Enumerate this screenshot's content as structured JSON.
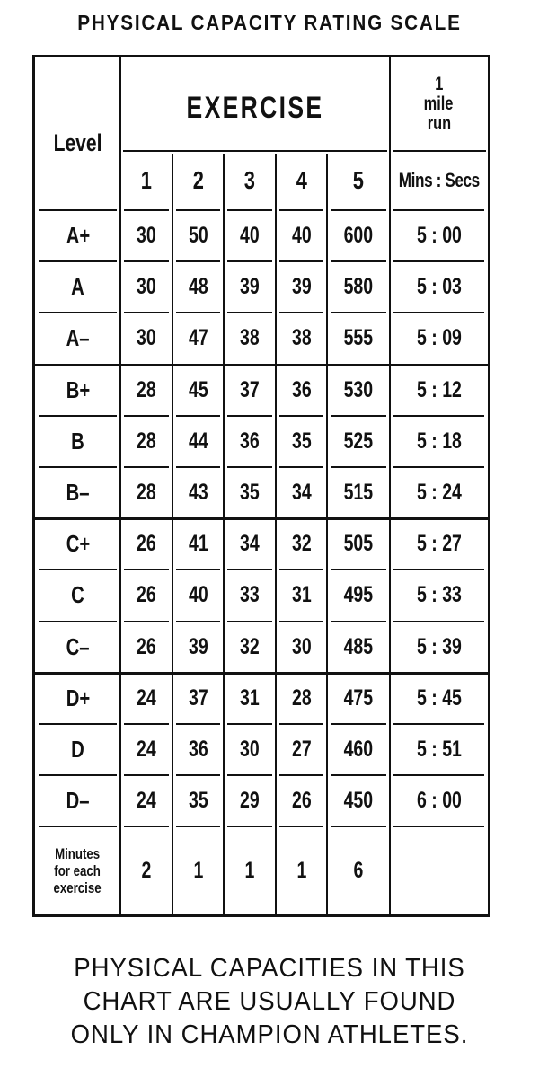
{
  "title": "PHYSICAL CAPACITY RATING SCALE",
  "table": {
    "level_header": "Level",
    "exercise_header": "EXERCISE",
    "run_header": [
      "1",
      "mile",
      "run"
    ],
    "exercise_numbers": [
      "1",
      "2",
      "3",
      "4",
      "5"
    ],
    "run_units": "Mins : Secs",
    "rows": [
      {
        "level": "A+",
        "values": [
          "30",
          "50",
          "40",
          "40",
          "600"
        ],
        "run": "5 : 00"
      },
      {
        "level": "A",
        "values": [
          "30",
          "48",
          "39",
          "39",
          "580"
        ],
        "run": "5 : 03"
      },
      {
        "level": "A–",
        "values": [
          "30",
          "47",
          "38",
          "38",
          "555"
        ],
        "run": "5 : 09"
      },
      {
        "level": "B+",
        "values": [
          "28",
          "45",
          "37",
          "36",
          "530"
        ],
        "run": "5 : 12"
      },
      {
        "level": "B",
        "values": [
          "28",
          "44",
          "36",
          "35",
          "525"
        ],
        "run": "5 : 18"
      },
      {
        "level": "B–",
        "values": [
          "28",
          "43",
          "35",
          "34",
          "515"
        ],
        "run": "5 : 24"
      },
      {
        "level": "C+",
        "values": [
          "26",
          "41",
          "34",
          "32",
          "505"
        ],
        "run": "5 : 27"
      },
      {
        "level": "C",
        "values": [
          "26",
          "40",
          "33",
          "31",
          "495"
        ],
        "run": "5 : 33"
      },
      {
        "level": "C–",
        "values": [
          "26",
          "39",
          "32",
          "30",
          "485"
        ],
        "run": "5 : 39"
      },
      {
        "level": "D+",
        "values": [
          "24",
          "37",
          "31",
          "28",
          "475"
        ],
        "run": "5 : 45"
      },
      {
        "level": "D",
        "values": [
          "24",
          "36",
          "30",
          "27",
          "460"
        ],
        "run": "5 : 51"
      },
      {
        "level": "D–",
        "values": [
          "24",
          "35",
          "29",
          "26",
          "450"
        ],
        "run": "6 : 00"
      }
    ],
    "minutes_label": [
      "Minutes",
      "for each",
      "exercise"
    ],
    "minutes_values": [
      "2",
      "1",
      "1",
      "1",
      "6"
    ]
  },
  "caption": [
    "PHYSICAL CAPACITIES IN THIS",
    "CHART ARE USUALLY FOUND",
    "ONLY IN CHAMPION ATHLETES."
  ]
}
